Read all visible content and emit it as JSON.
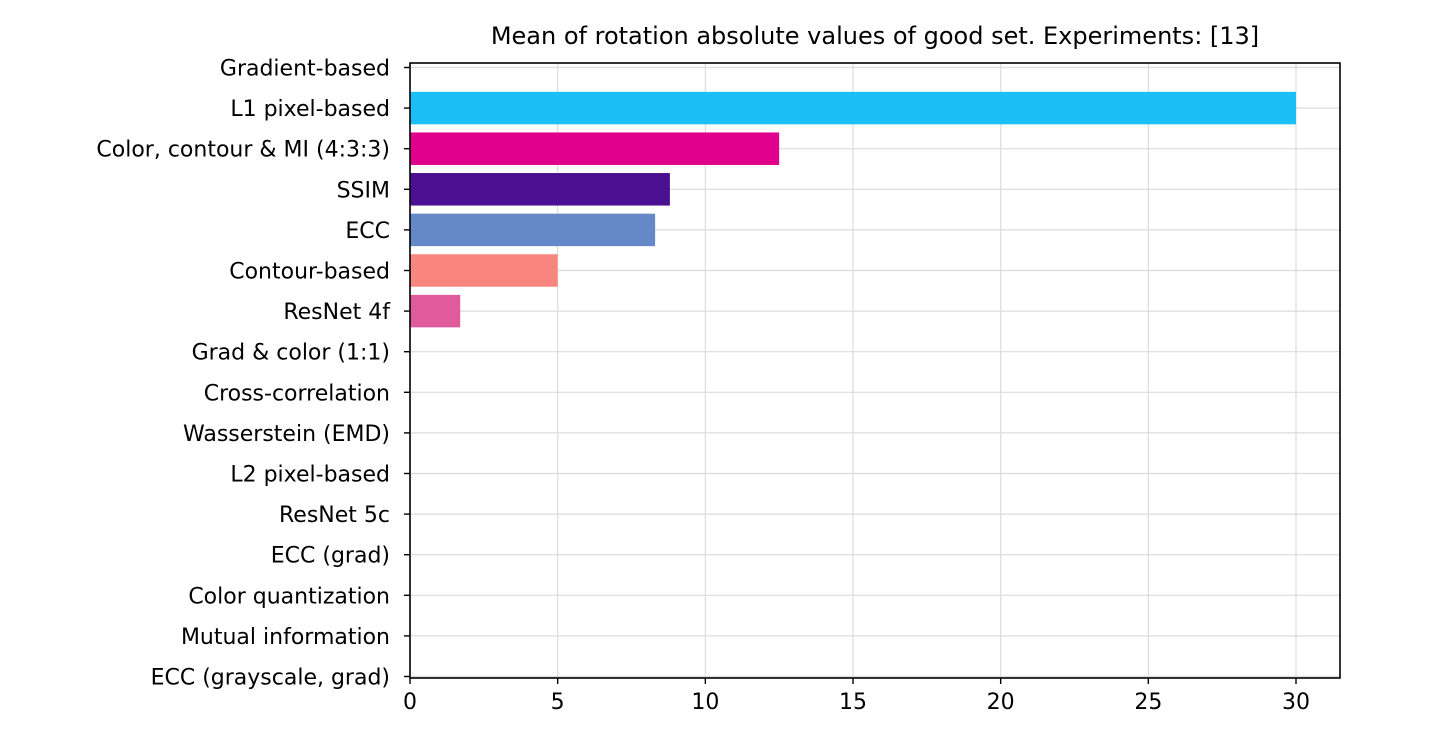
{
  "chart_data": {
    "type": "bar",
    "orientation": "horizontal",
    "title": "Mean of rotation absolute values of good set. Experiments: [13]",
    "xlabel": "",
    "ylabel": "",
    "xlim": [
      0,
      31.5
    ],
    "grid": true,
    "legend": "none",
    "x_ticks": [
      0,
      5,
      10,
      15,
      20,
      25,
      30
    ],
    "categories": [
      "Gradient-based",
      "L1 pixel-based",
      "Color, contour & MI (4:3:3)",
      "SSIM",
      "ECC",
      "Contour-based",
      "ResNet 4f",
      "Grad & color (1:1)",
      "Cross-correlation",
      "Wasserstein (EMD)",
      "L2 pixel-based",
      "ResNet 5c",
      "ECC (grad)",
      "Color quantization",
      "Mutual information",
      "ECC (grayscale, grad)"
    ],
    "values": [
      0,
      30.0,
      12.5,
      8.8,
      8.3,
      5.0,
      1.7,
      0,
      0,
      0,
      0,
      0,
      0,
      0,
      0,
      0
    ],
    "colors": [
      "#1f77b4",
      "#1bbff5",
      "#e0008b",
      "#4b0f91",
      "#6788c8",
      "#f98580",
      "#e05b9b",
      "#1f77b4",
      "#1f77b4",
      "#1f77b4",
      "#1f77b4",
      "#1f77b4",
      "#1f77b4",
      "#1f77b4",
      "#1f77b4",
      "#1f77b4"
    ]
  }
}
